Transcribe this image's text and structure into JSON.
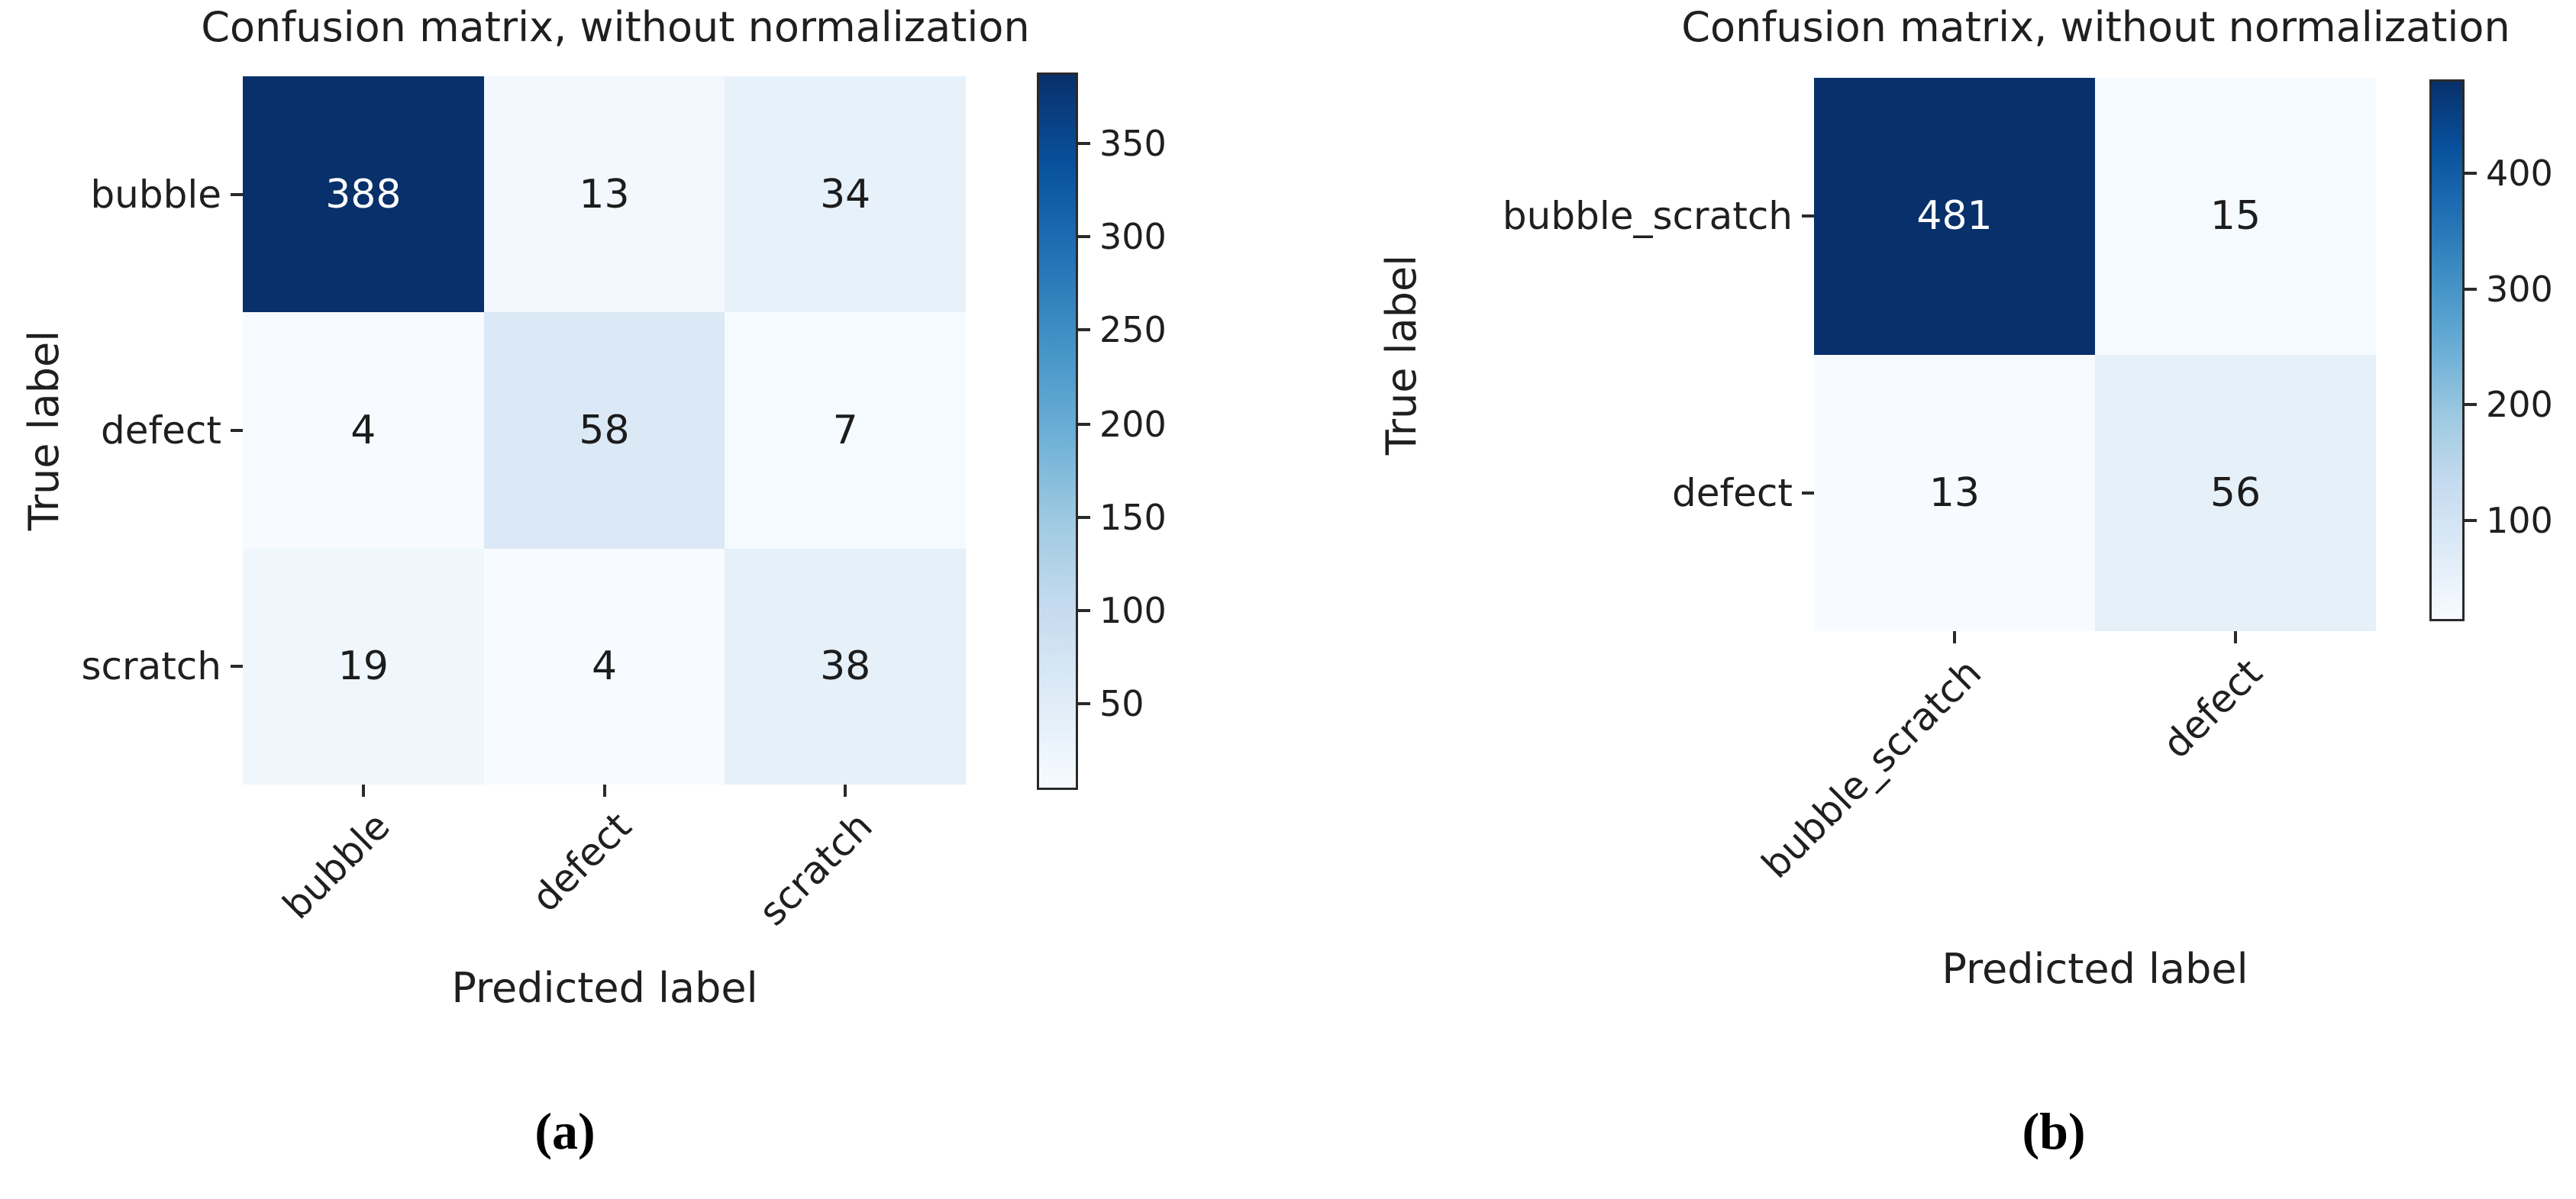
{
  "chart_data": [
    {
      "type": "heatmap",
      "caption": "(a)",
      "title": "Confusion matrix, without normalization",
      "xlabel": "Predicted label",
      "ylabel": "True label",
      "x_categories": [
        "bubble",
        "defect",
        "scratch"
      ],
      "y_categories": [
        "bubble",
        "defect",
        "scratch"
      ],
      "values": [
        [
          388,
          13,
          34
        ],
        [
          4,
          58,
          7
        ],
        [
          19,
          4,
          38
        ]
      ],
      "cell_colors": [
        [
          "#08306b",
          "#f2f8fd",
          "#e7f1fa"
        ],
        [
          "#f7fbff",
          "#dbe9f6",
          "#f5fafe"
        ],
        [
          "#eff6fc",
          "#f7fbff",
          "#e5f0f9"
        ]
      ],
      "cell_text_colors": [
        [
          "#ffffff",
          "#1c1c1c",
          "#1c1c1c"
        ],
        [
          "#1c1c1c",
          "#1c1c1c",
          "#1c1c1c"
        ],
        [
          "#1c1c1c",
          "#1c1c1c",
          "#1c1c1c"
        ]
      ],
      "value_range": [
        4,
        388
      ],
      "grid": false,
      "colorbar": {
        "position": "right",
        "ticks": [
          {
            "label": "50",
            "pos_pct_from_top": 88.0
          },
          {
            "label": "100",
            "pos_pct_from_top": 75.0
          },
          {
            "label": "150",
            "pos_pct_from_top": 62.0
          },
          {
            "label": "200",
            "pos_pct_from_top": 49.0
          },
          {
            "label": "250",
            "pos_pct_from_top": 35.9
          },
          {
            "label": "300",
            "pos_pct_from_top": 22.9
          },
          {
            "label": "350",
            "pos_pct_from_top": 9.9
          }
        ]
      }
    },
    {
      "type": "heatmap",
      "caption": "(b)",
      "title": "Confusion matrix, without normalization",
      "xlabel": "Predicted label",
      "ylabel": "True label",
      "x_categories": [
        "bubble_scratch",
        "defect"
      ],
      "y_categories": [
        "bubble_scratch",
        "defect"
      ],
      "values": [
        [
          481,
          15
        ],
        [
          13,
          56
        ]
      ],
      "cell_colors": [
        [
          "#08306b",
          "#f5fafe"
        ],
        [
          "#f7fbff",
          "#e5f0f9"
        ]
      ],
      "cell_text_colors": [
        [
          "#ffffff",
          "#1c1c1c"
        ],
        [
          "#1c1c1c",
          "#1c1c1c"
        ]
      ],
      "value_range": [
        13,
        481
      ],
      "grid": false,
      "colorbar": {
        "position": "right",
        "ticks": [
          {
            "label": "100",
            "pos_pct_from_top": 81.4
          },
          {
            "label": "200",
            "pos_pct_from_top": 60.0
          },
          {
            "label": "300",
            "pos_pct_from_top": 38.7
          },
          {
            "label": "400",
            "pos_pct_from_top": 17.3
          }
        ]
      }
    }
  ],
  "colors": {
    "cmap_name": "Blues",
    "cmap_dark": "#08306b",
    "cmap_light": "#f7fbff",
    "axis_line": "#3a3a3a",
    "text": "#1f1f1f"
  }
}
